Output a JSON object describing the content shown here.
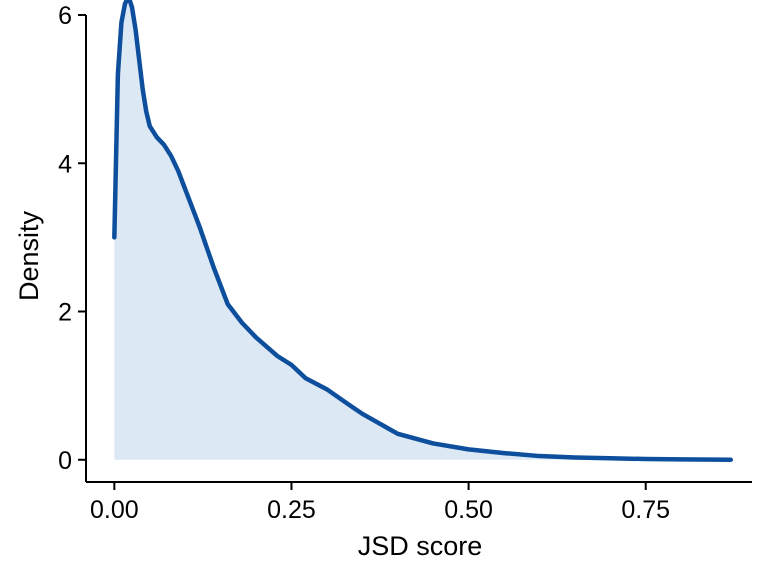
{
  "chart_data": {
    "type": "area",
    "title": "",
    "xlabel": "JSD score",
    "ylabel": "Density",
    "xlim": [
      -0.04,
      0.9
    ],
    "ylim": [
      -0.3,
      6.0
    ],
    "x_ticks": [
      0.0,
      0.25,
      0.5,
      0.75
    ],
    "x_tick_labels": [
      "0.00",
      "0.25",
      "0.50",
      "0.75"
    ],
    "y_ticks": [
      0,
      2,
      4,
      6
    ],
    "y_tick_labels": [
      "0",
      "2",
      "4",
      "6"
    ],
    "grid": false,
    "legend": "none",
    "colors": {
      "line": "#0d4f9c",
      "fill": "#dde8f5",
      "axis": "#000000"
    },
    "series": [
      {
        "x": [
          0.0,
          0.005,
          0.01,
          0.015,
          0.02,
          0.025,
          0.03,
          0.035,
          0.04,
          0.045,
          0.05,
          0.06,
          0.07,
          0.08,
          0.09,
          0.1,
          0.11,
          0.12,
          0.14,
          0.16,
          0.18,
          0.2,
          0.23,
          0.25,
          0.27,
          0.3,
          0.33,
          0.35,
          0.4,
          0.45,
          0.5,
          0.55,
          0.6,
          0.65,
          0.7,
          0.75,
          0.8,
          0.87
        ],
        "y": [
          3.0,
          5.2,
          5.9,
          6.15,
          6.25,
          6.1,
          5.8,
          5.4,
          5.0,
          4.7,
          4.5,
          4.35,
          4.25,
          4.1,
          3.9,
          3.65,
          3.4,
          3.15,
          2.6,
          2.1,
          1.85,
          1.65,
          1.4,
          1.28,
          1.1,
          0.95,
          0.75,
          0.62,
          0.35,
          0.22,
          0.14,
          0.09,
          0.05,
          0.03,
          0.02,
          0.01,
          0.005,
          0.0
        ]
      }
    ]
  }
}
